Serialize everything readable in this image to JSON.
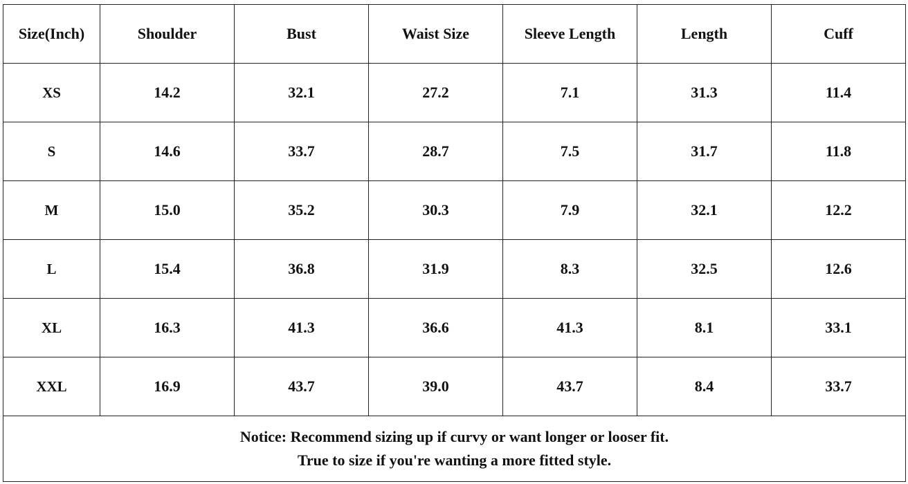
{
  "table": {
    "headers": [
      "Size(Inch)",
      "Shoulder",
      "Bust",
      "Waist Size",
      "Sleeve Length",
      "Length",
      "Cuff"
    ],
    "rows": [
      [
        "XS",
        "14.2",
        "32.1",
        "27.2",
        "7.1",
        "31.3",
        "11.4"
      ],
      [
        "S",
        "14.6",
        "33.7",
        "28.7",
        "7.5",
        "31.7",
        "11.8"
      ],
      [
        "M",
        "15.0",
        "35.2",
        "30.3",
        "7.9",
        "32.1",
        "12.2"
      ],
      [
        "L",
        "15.4",
        "36.8",
        "31.9",
        "8.3",
        "32.5",
        "12.6"
      ],
      [
        "XL",
        "16.3",
        "41.3",
        "36.6",
        "41.3",
        "8.1",
        "33.1"
      ],
      [
        "XXL",
        "16.9",
        "43.7",
        "39.0",
        "43.7",
        "8.4",
        "33.7"
      ]
    ]
  },
  "notice": {
    "line1": "Notice: Recommend sizing up if curvy or want longer or looser fit.",
    "line2": "True to size if you're wanting a more fitted style."
  }
}
